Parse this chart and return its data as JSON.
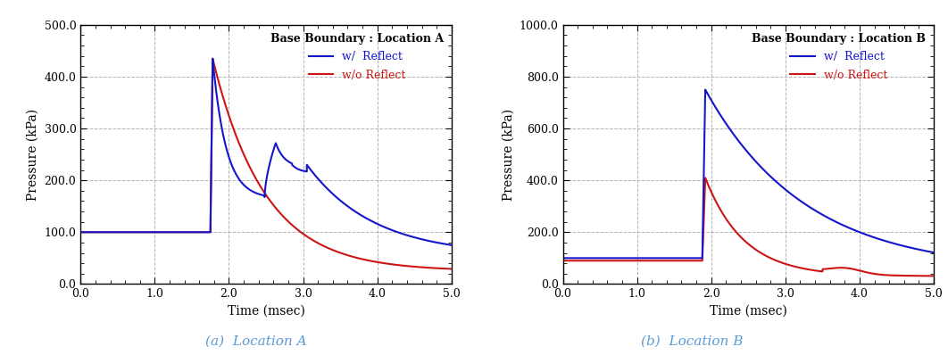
{
  "panel_a": {
    "title": "Base Boundary : Location A",
    "xlabel": "Time (msec)",
    "ylabel": "Pressure (kPa)",
    "xlim": [
      0.0,
      5.0
    ],
    "ylim": [
      0.0,
      500.0
    ],
    "yticks": [
      0.0,
      100.0,
      200.0,
      300.0,
      400.0,
      500.0
    ],
    "xticks": [
      0.0,
      1.0,
      2.0,
      3.0,
      4.0,
      5.0
    ],
    "caption": "(a)  Location A",
    "blue_color": "#1515CC",
    "red_color": "#CC1515"
  },
  "panel_b": {
    "title": "Base Boundary : Location B",
    "xlabel": "Time (msec)",
    "ylabel": "Pressure (kPa)",
    "xlim": [
      0.0,
      5.0
    ],
    "ylim": [
      0.0,
      1000.0
    ],
    "yticks": [
      0.0,
      200.0,
      400.0,
      600.0,
      800.0,
      1000.0
    ],
    "xticks": [
      0.0,
      1.0,
      2.0,
      3.0,
      4.0,
      5.0
    ],
    "caption": "(b)  Location B",
    "blue_color": "#1515CC",
    "red_color": "#CC1515"
  },
  "caption_color": "#5B9BD5",
  "legend_reflect": "w/  Reflect",
  "legend_no_reflect": "w/o Reflect"
}
